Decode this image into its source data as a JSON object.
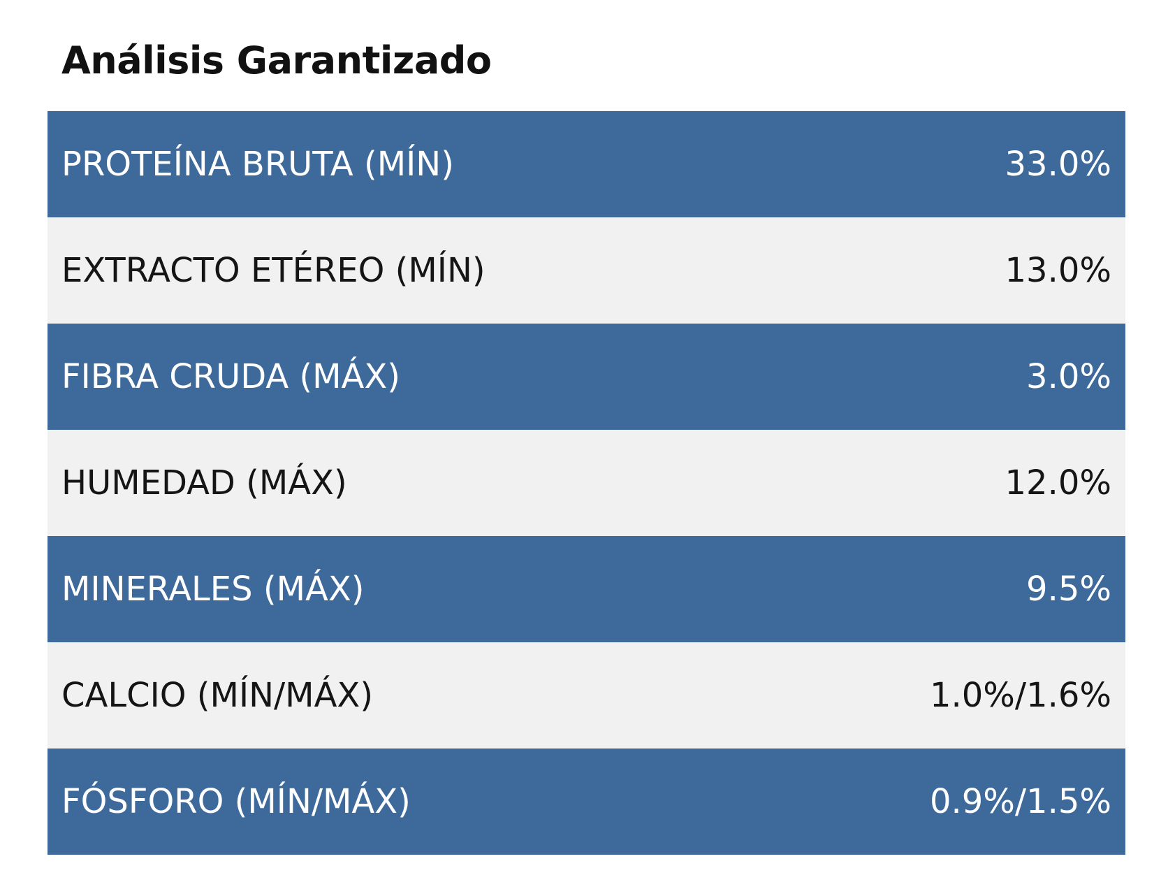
{
  "title": "Análisis Garantizado",
  "colors": {
    "dark_row": "#3d6a9b",
    "light_row": "#f1f1f1",
    "dark_text": "#ffffff",
    "light_text": "#151515"
  },
  "rows": [
    {
      "label": "PROTEÍNA BRUTA (MÍN)",
      "value": "33.0%"
    },
    {
      "label": "EXTRACTO ETÉREO (MÍN)",
      "value": "13.0%"
    },
    {
      "label": "FIBRA CRUDA (MÁX)",
      "value": "3.0%"
    },
    {
      "label": "HUMEDAD (MÁX)",
      "value": "12.0%"
    },
    {
      "label": "MINERALES (MÁX)",
      "value": "9.5%"
    },
    {
      "label": "CALCIO (MÍN/MÁX)",
      "value": "1.0%/1.6%"
    },
    {
      "label": "FÓSFORO (MÍN/MÁX)",
      "value": "0.9%/1.5%"
    }
  ]
}
